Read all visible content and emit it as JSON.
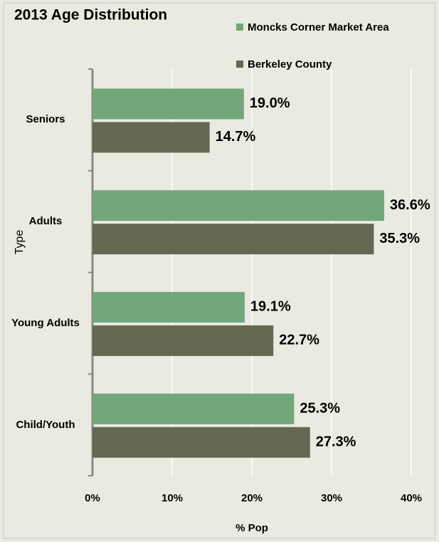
{
  "chart_data": {
    "type": "bar",
    "orientation": "horizontal",
    "title": "2013 Age Distribution",
    "categories": [
      "Seniors",
      "Adults",
      "Young Adults",
      "Child/Youth"
    ],
    "series": [
      {
        "name": "Moncks Corner Market Area",
        "color": "#72a77b",
        "values": [
          19.0,
          36.6,
          19.1,
          25.3
        ],
        "value_labels": [
          "19.0%",
          "36.6%",
          "19.1%",
          "25.3%"
        ]
      },
      {
        "name": "Berkeley County",
        "color": "#646852",
        "values": [
          14.7,
          35.3,
          22.7,
          27.3
        ],
        "value_labels": [
          "14.7%",
          "35.3%",
          "22.7%",
          "27.3%"
        ]
      }
    ],
    "xlim": [
      0,
      40
    ],
    "xticks": [
      {
        "value": 0,
        "label": "0%"
      },
      {
        "value": 10,
        "label": "10%"
      },
      {
        "value": 20,
        "label": "20%"
      },
      {
        "value": 30,
        "label": "30%"
      },
      {
        "value": 40,
        "label": "40%"
      }
    ],
    "xlabel": "% Pop",
    "ylabel": "Type",
    "grid": true
  }
}
